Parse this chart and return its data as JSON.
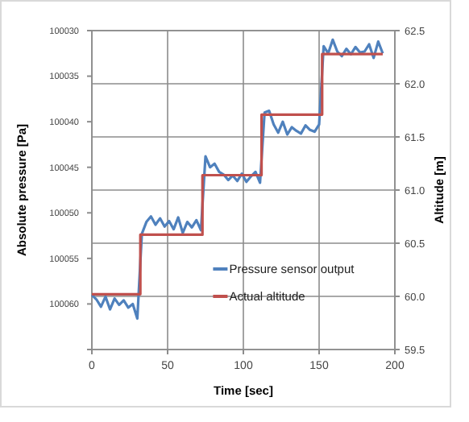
{
  "chart_data": {
    "type": "line",
    "xlabel": "Time [sec]",
    "ylabel": "Absolute pressure [Pa]",
    "y2label": "Altitude [m]",
    "xlim": [
      0,
      200
    ],
    "xticks": [
      0,
      50,
      100,
      150,
      200
    ],
    "ylim": [
      100065,
      100030
    ],
    "yticks": [
      100030,
      100035,
      100040,
      100045,
      100050,
      100055,
      100060,
      {
        "value": 100065,
        "label": null
      }
    ],
    "y2lim": [
      59.5,
      62.5
    ],
    "y2ticks": [
      59.5,
      {
        "value": 60,
        "label": "60.0"
      },
      60.5,
      {
        "value": 61,
        "label": "61.0"
      },
      61.5,
      {
        "value": 62,
        "label": "62.0"
      },
      62.5
    ],
    "grid": true,
    "legend": "bottom right",
    "series": [
      {
        "name": "Pressure sensor output",
        "color": "#4f81bd",
        "x": [
          0,
          3,
          6,
          9,
          12,
          15,
          18,
          21,
          24,
          27,
          30,
          33,
          36,
          39,
          42,
          45,
          48,
          51,
          54,
          57,
          60,
          63,
          66,
          69,
          72,
          75,
          78,
          81,
          84,
          87,
          90,
          93,
          96,
          99,
          102,
          105,
          108,
          111,
          114,
          117,
          120,
          123,
          126,
          129,
          132,
          135,
          138,
          141,
          144,
          147,
          150,
          153,
          156,
          159,
          162,
          165,
          168,
          171,
          174,
          177,
          180,
          183,
          186,
          189,
          192
        ],
        "values": [
          100059.0,
          100059.5,
          100060.3,
          100059.2,
          100060.6,
          100059.4,
          100060.1,
          100059.6,
          100060.4,
          100060.0,
          100061.6,
          100052.3,
          100051.0,
          100050.4,
          100051.3,
          100050.6,
          100051.5,
          100050.9,
          100051.8,
          100050.5,
          100052.2,
          100051.0,
          100051.6,
          100050.8,
          100051.9,
          100043.8,
          100045.0,
          100044.6,
          100045.5,
          100045.8,
          100046.4,
          100045.9,
          100046.5,
          100045.7,
          100046.6,
          100046.0,
          100045.5,
          100046.7,
          100039.0,
          100038.8,
          100040.3,
          100041.2,
          100040.0,
          100041.4,
          100040.6,
          100041.0,
          100041.3,
          100040.4,
          100040.9,
          100041.1,
          100040.3,
          100031.7,
          100032.5,
          100031.0,
          100032.3,
          100032.8,
          100032.0,
          100032.6,
          100031.8,
          100032.4,
          100032.3,
          100031.5,
          100033.0,
          100031.2,
          100032.5
        ]
      },
      {
        "name": "Actual altitude",
        "color": "#c0504d",
        "type": "step",
        "axis": "y2",
        "x": [
          0,
          32,
          73,
          112,
          152,
          192
        ],
        "values": [
          60.02,
          60.58,
          61.14,
          61.71,
          62.28,
          62.28
        ]
      }
    ]
  }
}
